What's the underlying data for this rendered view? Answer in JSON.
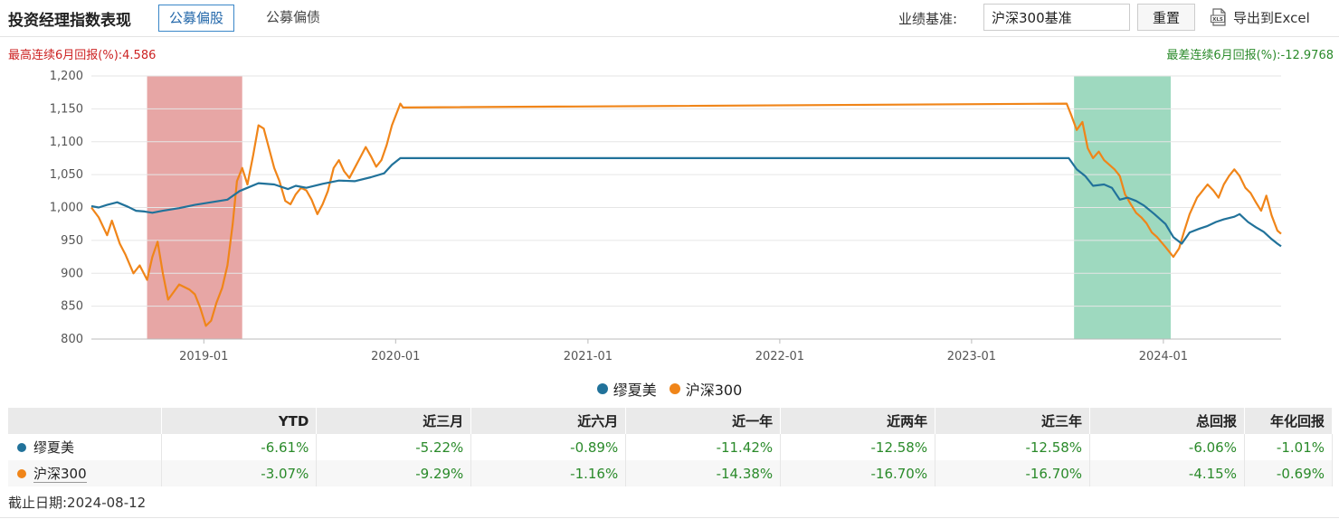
{
  "header": {
    "title": "投资经理指数表现",
    "tabs": [
      {
        "label": "公募偏股",
        "active": true
      },
      {
        "label": "公募偏债",
        "active": false
      }
    ],
    "benchmark_label": "业绩基准:",
    "benchmark_value": "沪深300基准",
    "reset_label": "重置",
    "export_label": "导出到Excel",
    "export_icon": "xls-file-icon"
  },
  "info": {
    "best_6m": "最高连续6月回报(%):4.586",
    "worst_6m": "最差连续6月回报(%):-12.9768"
  },
  "colors": {
    "manager": "#21729a",
    "benchmark": "#f08519",
    "best_band": "#d9706e",
    "worst_band": "#4fba8a",
    "positive": "#cc2222",
    "negative": "#2a8a2a"
  },
  "chart_data": {
    "type": "line",
    "x_axis": "date",
    "xlim": [
      "2018-06-01",
      "2024-08-12"
    ],
    "ylim": [
      800,
      1200
    ],
    "y_ticks": [
      800,
      850,
      900,
      950,
      1000,
      1050,
      1100,
      1150,
      1200
    ],
    "y_tick_labels": [
      "800",
      "850",
      "900",
      "950",
      "1,000",
      "1,050",
      "1,100",
      "1,150",
      "1,200"
    ],
    "x_ticks": [
      "2019-01-01",
      "2020-01-01",
      "2021-01-01",
      "2022-01-01",
      "2023-01-01",
      "2024-01-01"
    ],
    "x_tick_labels": [
      "2019-01",
      "2020-01",
      "2021-01",
      "2022-01",
      "2023-01",
      "2024-01"
    ],
    "grid": true,
    "legend_position": "bottom-center",
    "highlight_bands": [
      {
        "kind": "best",
        "start": "2018-09-15",
        "end": "2019-03-15"
      },
      {
        "kind": "worst",
        "start": "2023-07-15",
        "end": "2024-01-15"
      }
    ],
    "series": [
      {
        "name": "缪夏美",
        "points": [
          [
            "2018-06-01",
            1002
          ],
          [
            "2018-06-15",
            1000
          ],
          [
            "2018-07-01",
            1004
          ],
          [
            "2018-07-20",
            1008
          ],
          [
            "2018-08-10",
            1001
          ],
          [
            "2018-08-25",
            995
          ],
          [
            "2018-09-10",
            994
          ],
          [
            "2018-09-25",
            992
          ],
          [
            "2018-10-15",
            995
          ],
          [
            "2018-11-15",
            999
          ],
          [
            "2018-12-15",
            1004
          ],
          [
            "2019-01-15",
            1008
          ],
          [
            "2019-02-15",
            1012
          ],
          [
            "2019-03-10",
            1025
          ],
          [
            "2019-03-25",
            1030
          ],
          [
            "2019-04-15",
            1037
          ],
          [
            "2019-05-15",
            1035
          ],
          [
            "2019-06-10",
            1028
          ],
          [
            "2019-06-25",
            1033
          ],
          [
            "2019-07-15",
            1030
          ],
          [
            "2019-08-15",
            1036
          ],
          [
            "2019-09-15",
            1041
          ],
          [
            "2019-10-15",
            1040
          ],
          [
            "2019-11-15",
            1046
          ],
          [
            "2019-12-10",
            1052
          ],
          [
            "2019-12-25",
            1065
          ],
          [
            "2020-01-10",
            1075
          ],
          [
            "2023-07-05",
            1075
          ],
          [
            "2023-07-20",
            1058
          ],
          [
            "2023-08-05",
            1048
          ],
          [
            "2023-08-20",
            1033
          ],
          [
            "2023-09-10",
            1035
          ],
          [
            "2023-09-25",
            1030
          ],
          [
            "2023-10-10",
            1012
          ],
          [
            "2023-10-25",
            1015
          ],
          [
            "2023-11-10",
            1010
          ],
          [
            "2023-11-25",
            1003
          ],
          [
            "2023-12-15",
            990
          ],
          [
            "2024-01-05",
            975
          ],
          [
            "2024-01-20",
            955
          ],
          [
            "2024-02-05",
            945
          ],
          [
            "2024-02-20",
            962
          ],
          [
            "2024-03-10",
            968
          ],
          [
            "2024-03-25",
            972
          ],
          [
            "2024-04-10",
            978
          ],
          [
            "2024-04-25",
            982
          ],
          [
            "2024-05-15",
            986
          ],
          [
            "2024-05-25",
            990
          ],
          [
            "2024-06-10",
            978
          ],
          [
            "2024-06-25",
            970
          ],
          [
            "2024-07-10",
            963
          ],
          [
            "2024-07-25",
            952
          ],
          [
            "2024-08-05",
            945
          ],
          [
            "2024-08-12",
            941
          ]
        ]
      },
      {
        "name": "沪深300",
        "points": [
          [
            "2018-06-01",
            1000
          ],
          [
            "2018-06-15",
            985
          ],
          [
            "2018-07-01",
            958
          ],
          [
            "2018-07-10",
            980
          ],
          [
            "2018-07-25",
            945
          ],
          [
            "2018-08-05",
            928
          ],
          [
            "2018-08-20",
            900
          ],
          [
            "2018-09-01",
            912
          ],
          [
            "2018-09-15",
            890
          ],
          [
            "2018-09-25",
            925
          ],
          [
            "2018-10-05",
            948
          ],
          [
            "2018-10-15",
            900
          ],
          [
            "2018-10-25",
            860
          ],
          [
            "2018-11-05",
            872
          ],
          [
            "2018-11-15",
            883
          ],
          [
            "2018-11-25",
            879
          ],
          [
            "2018-12-05",
            875
          ],
          [
            "2018-12-15",
            868
          ],
          [
            "2018-12-25",
            848
          ],
          [
            "2019-01-05",
            820
          ],
          [
            "2019-01-15",
            828
          ],
          [
            "2019-01-25",
            855
          ],
          [
            "2019-02-05",
            878
          ],
          [
            "2019-02-15",
            912
          ],
          [
            "2019-02-25",
            975
          ],
          [
            "2019-03-05",
            1040
          ],
          [
            "2019-03-15",
            1060
          ],
          [
            "2019-03-25",
            1035
          ],
          [
            "2019-04-05",
            1080
          ],
          [
            "2019-04-15",
            1125
          ],
          [
            "2019-04-25",
            1120
          ],
          [
            "2019-05-05",
            1090
          ],
          [
            "2019-05-15",
            1060
          ],
          [
            "2019-05-25",
            1040
          ],
          [
            "2019-06-05",
            1010
          ],
          [
            "2019-06-15",
            1005
          ],
          [
            "2019-06-25",
            1020
          ],
          [
            "2019-07-05",
            1030
          ],
          [
            "2019-07-15",
            1026
          ],
          [
            "2019-07-25",
            1012
          ],
          [
            "2019-08-05",
            990
          ],
          [
            "2019-08-15",
            1005
          ],
          [
            "2019-08-25",
            1025
          ],
          [
            "2019-09-05",
            1060
          ],
          [
            "2019-09-15",
            1072
          ],
          [
            "2019-09-25",
            1055
          ],
          [
            "2019-10-05",
            1045
          ],
          [
            "2019-10-15",
            1060
          ],
          [
            "2019-10-25",
            1075
          ],
          [
            "2019-11-05",
            1092
          ],
          [
            "2019-11-15",
            1078
          ],
          [
            "2019-11-25",
            1062
          ],
          [
            "2019-12-05",
            1072
          ],
          [
            "2019-12-15",
            1095
          ],
          [
            "2019-12-25",
            1125
          ],
          [
            "2020-01-10",
            1158
          ],
          [
            "2020-01-15",
            1152
          ],
          [
            "2023-07-01",
            1158
          ],
          [
            "2023-07-10",
            1140
          ],
          [
            "2023-07-20",
            1118
          ],
          [
            "2023-07-31",
            1130
          ],
          [
            "2023-08-10",
            1090
          ],
          [
            "2023-08-20",
            1075
          ],
          [
            "2023-08-31",
            1085
          ],
          [
            "2023-09-10",
            1072
          ],
          [
            "2023-09-20",
            1065
          ],
          [
            "2023-09-30",
            1058
          ],
          [
            "2023-10-10",
            1048
          ],
          [
            "2023-10-20",
            1020
          ],
          [
            "2023-10-31",
            1005
          ],
          [
            "2023-11-10",
            992
          ],
          [
            "2023-11-20",
            985
          ],
          [
            "2023-11-30",
            976
          ],
          [
            "2023-12-10",
            962
          ],
          [
            "2023-12-20",
            955
          ],
          [
            "2024-01-05",
            940
          ],
          [
            "2024-01-20",
            925
          ],
          [
            "2024-01-31",
            938
          ],
          [
            "2024-02-10",
            965
          ],
          [
            "2024-02-20",
            990
          ],
          [
            "2024-03-05",
            1015
          ],
          [
            "2024-03-15",
            1025
          ],
          [
            "2024-03-25",
            1035
          ],
          [
            "2024-04-05",
            1026
          ],
          [
            "2024-04-15",
            1015
          ],
          [
            "2024-04-25",
            1035
          ],
          [
            "2024-05-05",
            1048
          ],
          [
            "2024-05-15",
            1058
          ],
          [
            "2024-05-25",
            1048
          ],
          [
            "2024-06-05",
            1030
          ],
          [
            "2024-06-15",
            1022
          ],
          [
            "2024-06-25",
            1008
          ],
          [
            "2024-07-05",
            995
          ],
          [
            "2024-07-15",
            1018
          ],
          [
            "2024-07-25",
            988
          ],
          [
            "2024-08-05",
            965
          ],
          [
            "2024-08-12",
            960
          ]
        ]
      }
    ]
  },
  "table": {
    "headers": [
      "",
      "YTD",
      "近三月",
      "近六月",
      "近一年",
      "近两年",
      "近三年",
      "总回报",
      "年化回报"
    ],
    "rows": [
      {
        "name": "缪夏美",
        "values": [
          "-6.61%",
          "-5.22%",
          "-0.89%",
          "-11.42%",
          "-12.58%",
          "-12.58%",
          "-6.06%",
          "-1.01%"
        ]
      },
      {
        "name": "沪深300",
        "values": [
          "-3.07%",
          "-9.29%",
          "-1.16%",
          "-14.38%",
          "-16.70%",
          "-16.70%",
          "-4.15%",
          "-0.69%"
        ]
      }
    ]
  },
  "footer": {
    "as_of": "截止日期:2024-08-12"
  }
}
